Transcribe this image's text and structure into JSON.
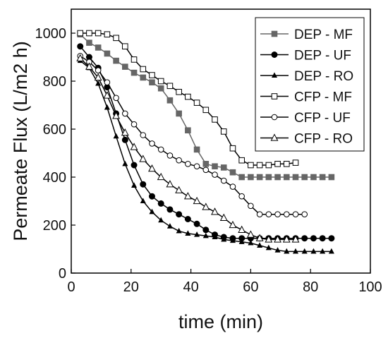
{
  "chart_data": {
    "type": "line",
    "title": "",
    "xlabel": "time (min)",
    "ylabel": "Permeate Flux (L/m2 h)",
    "xlim": [
      0,
      100
    ],
    "ylim": [
      0,
      1100
    ],
    "xticks": [
      0,
      20,
      40,
      60,
      80,
      100
    ],
    "yticks": [
      0,
      200,
      400,
      600,
      800,
      1000
    ],
    "grid": false,
    "legend_position": "top-right",
    "series": [
      {
        "name": "DEP - MF",
        "marker": "square-filled",
        "color": "#666666",
        "x": [
          3,
          6,
          9,
          12,
          15,
          18,
          21,
          24,
          27,
          30,
          33,
          36,
          39,
          42,
          45,
          48,
          51,
          54,
          57,
          60,
          63,
          66,
          69,
          72,
          75,
          78,
          81,
          84,
          87
        ],
        "y": [
          995,
          960,
          940,
          915,
          885,
          860,
          835,
          815,
          795,
          770,
          720,
          665,
          595,
          515,
          455,
          445,
          440,
          420,
          400,
          400,
          400,
          400,
          400,
          400,
          400,
          400,
          400,
          400,
          400
        ]
      },
      {
        "name": "DEP - UF",
        "marker": "circle-filled",
        "color": "#000000",
        "x": [
          3,
          6,
          9,
          12,
          15,
          18,
          21,
          24,
          27,
          30,
          33,
          36,
          39,
          42,
          45,
          48,
          51,
          54,
          57,
          60,
          63,
          66,
          69,
          72,
          75,
          78,
          81,
          84,
          87
        ],
        "y": [
          945,
          900,
          855,
          775,
          665,
          555,
          450,
          370,
          320,
          290,
          265,
          245,
          225,
          205,
          180,
          160,
          150,
          145,
          145,
          145,
          145,
          145,
          145,
          145,
          145,
          145,
          145,
          145,
          145
        ]
      },
      {
        "name": "DEP - RO",
        "marker": "triangle-filled",
        "color": "#000000",
        "x": [
          3,
          6,
          9,
          12,
          15,
          18,
          21,
          24,
          27,
          30,
          33,
          36,
          39,
          42,
          45,
          48,
          51,
          54,
          57,
          60,
          63,
          66,
          69,
          72,
          75,
          78,
          81,
          84,
          87
        ],
        "y": [
          885,
          855,
          790,
          690,
          570,
          455,
          365,
          300,
          255,
          220,
          195,
          175,
          165,
          160,
          155,
          150,
          140,
          135,
          130,
          125,
          115,
          105,
          95,
          90,
          90,
          90,
          90,
          90,
          90
        ]
      },
      {
        "name": "CFP - MF",
        "marker": "square-open",
        "color": "#000000",
        "x": [
          3,
          6,
          9,
          12,
          15,
          18,
          21,
          24,
          27,
          30,
          33,
          36,
          39,
          42,
          45,
          48,
          51,
          54,
          57,
          60,
          63,
          66,
          69,
          72,
          75
        ],
        "y": [
          1000,
          1000,
          1000,
          995,
          980,
          945,
          890,
          850,
          825,
          800,
          780,
          755,
          735,
          710,
          680,
          640,
          590,
          520,
          470,
          450,
          450,
          450,
          455,
          455,
          460
        ]
      },
      {
        "name": "CFP - UF",
        "marker": "circle-open",
        "color": "#000000",
        "x": [
          3,
          6,
          9,
          12,
          15,
          18,
          21,
          24,
          27,
          30,
          33,
          36,
          39,
          42,
          45,
          48,
          51,
          54,
          57,
          60,
          63,
          66,
          69,
          72,
          75,
          78
        ],
        "y": [
          905,
          880,
          845,
          795,
          730,
          665,
          620,
          575,
          540,
          515,
          490,
          470,
          455,
          445,
          430,
          410,
          385,
          360,
          320,
          280,
          245,
          245,
          245,
          245,
          245,
          245
        ]
      },
      {
        "name": "CFP - RO",
        "marker": "triangle-open",
        "color": "#000000",
        "x": [
          3,
          6,
          9,
          12,
          15,
          18,
          21,
          24,
          27,
          30,
          33,
          36,
          39,
          42,
          45,
          48,
          51,
          54,
          57,
          60,
          63,
          66,
          69,
          72,
          75
        ],
        "y": [
          895,
          860,
          815,
          740,
          655,
          585,
          525,
          475,
          435,
          400,
          370,
          345,
          320,
          300,
          275,
          255,
          230,
          200,
          180,
          160,
          145,
          140,
          140,
          140,
          140
        ]
      }
    ]
  }
}
